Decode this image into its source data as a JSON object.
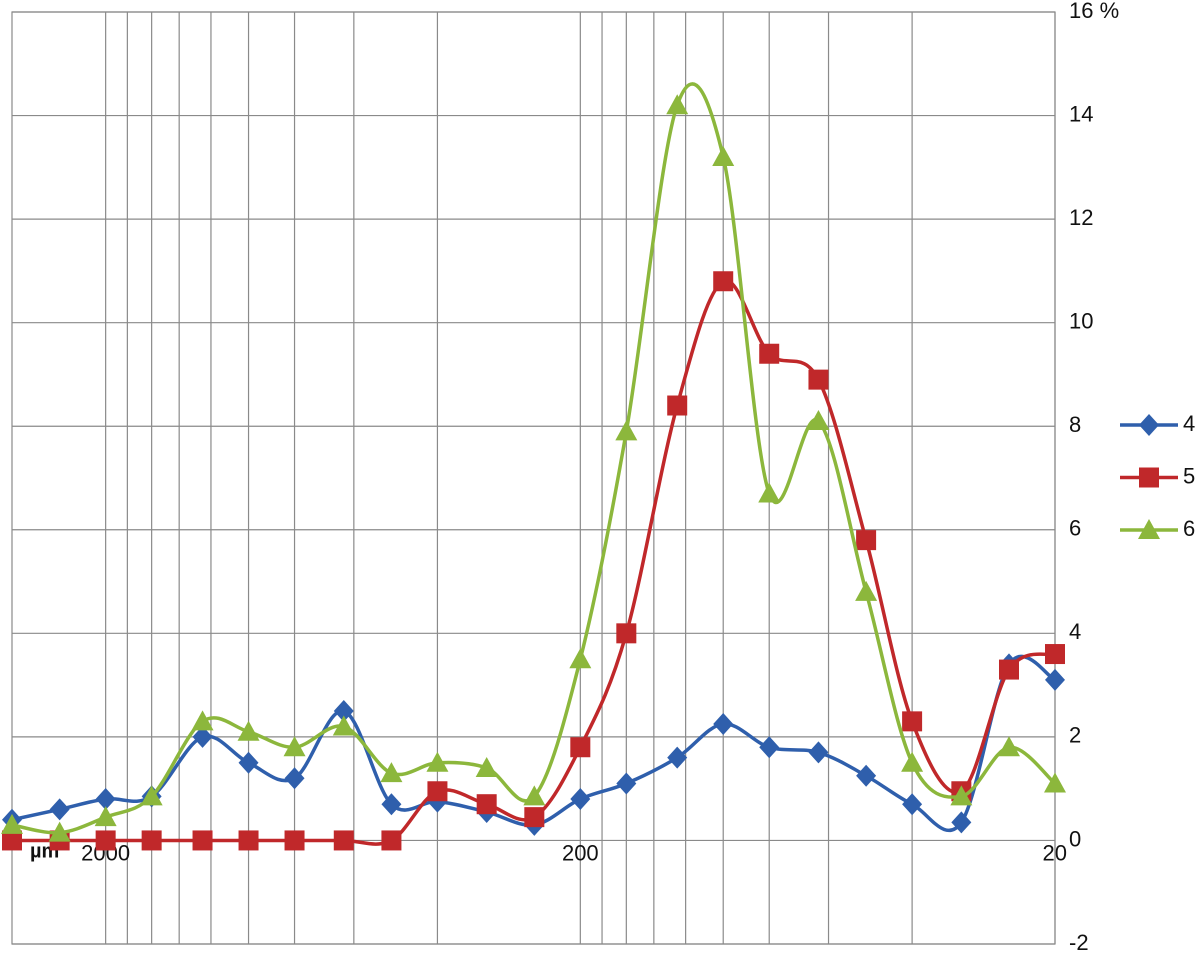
{
  "chart_data": {
    "type": "line",
    "x_label": "µm",
    "x_log": true,
    "smooth": true,
    "grid": true,
    "legend": "right",
    "xlim": [
      3150,
      20
    ],
    "xticks": [
      2000,
      200,
      20
    ],
    "x_minor_ticks": [
      1800,
      1600,
      1400,
      1200,
      1000,
      800,
      600,
      400,
      180,
      160,
      140,
      120,
      100,
      80,
      60,
      40
    ],
    "ylim": [
      -2,
      16
    ],
    "yticks": [
      -2,
      0,
      2,
      4,
      6,
      8,
      10,
      12,
      14,
      {
        "value": 16,
        "label": "16 %"
      }
    ],
    "x": [
      3150,
      2500,
      2000,
      1600,
      1250,
      1000,
      800,
      630,
      500,
      400,
      315,
      250,
      200,
      160,
      125,
      100,
      80,
      63,
      50,
      40,
      31.5,
      25,
      20
    ],
    "series": [
      {
        "name": "4",
        "color": "#2f5fac",
        "marker": "diamond",
        "values": [
          0.4,
          0.6,
          0.8,
          0.85,
          2.0,
          1.5,
          1.2,
          2.5,
          0.7,
          0.75,
          0.55,
          0.3,
          0.8,
          1.1,
          1.6,
          2.25,
          1.8,
          1.7,
          1.25,
          0.7,
          0.35,
          3.4,
          3.1
        ]
      },
      {
        "name": "5",
        "color": "#c0282a",
        "marker": "square",
        "values": [
          0,
          0,
          0,
          0,
          0,
          0,
          0,
          0,
          0,
          0.95,
          0.7,
          0.45,
          1.8,
          4.0,
          8.4,
          10.8,
          9.4,
          8.9,
          5.8,
          2.3,
          0.95,
          3.3,
          3.6
        ]
      },
      {
        "name": "6",
        "color": "#8cb73c",
        "marker": "triangle",
        "values": [
          0.3,
          0.15,
          0.45,
          0.85,
          2.3,
          2.1,
          1.8,
          2.2,
          1.3,
          1.5,
          1.4,
          0.85,
          3.5,
          7.9,
          14.2,
          13.2,
          6.7,
          8.1,
          4.8,
          1.5,
          0.85,
          1.8,
          1.1
        ]
      }
    ]
  }
}
